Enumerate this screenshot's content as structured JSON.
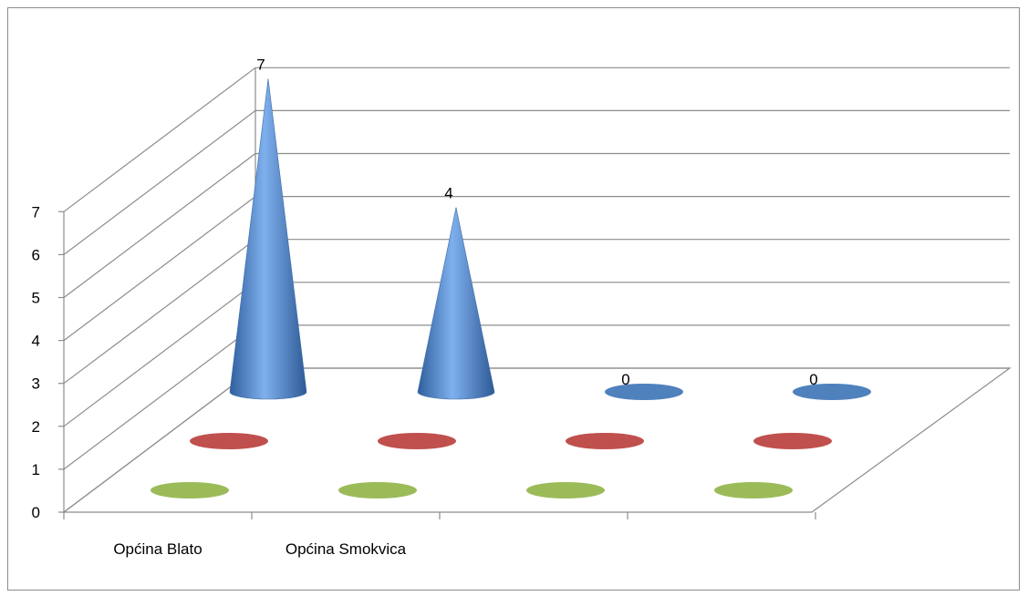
{
  "chart_data": {
    "type": "bar",
    "style": "3d-cone",
    "categories": [
      "Općina Blato",
      "Općina Smokvica",
      "",
      ""
    ],
    "series": [
      {
        "values": [
          7,
          4,
          0,
          0
        ],
        "color": "#4f81bd",
        "data_labels": true
      },
      {
        "values": [
          0,
          0,
          0,
          0
        ],
        "color": "#c0504d",
        "data_labels": false
      },
      {
        "values": [
          0,
          0,
          0,
          0
        ],
        "color": "#9bbb59",
        "data_labels": false
      }
    ],
    "ylim": [
      0,
      7
    ],
    "yticks": [
      "0",
      "1",
      "2",
      "3",
      "4",
      "5",
      "6",
      "7"
    ],
    "grid": true,
    "legend": "none"
  }
}
